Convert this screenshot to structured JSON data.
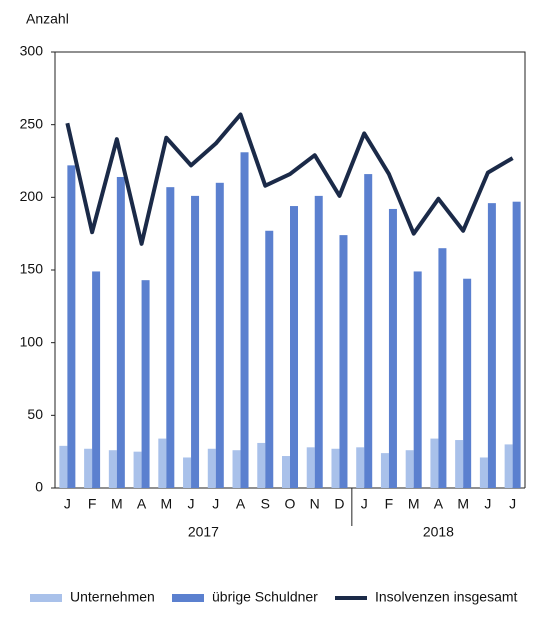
{
  "chart_data": {
    "type": "bar_line",
    "y_axis_label": "Anzahl",
    "category_groups": [
      {
        "name": "2017",
        "categories": [
          "J",
          "F",
          "M",
          "A",
          "M",
          "J",
          "J",
          "A",
          "S",
          "O",
          "N",
          "D"
        ]
      },
      {
        "name": "2018",
        "categories": [
          "J",
          "F",
          "M",
          "A",
          "M",
          "J",
          "J"
        ]
      }
    ],
    "series": [
      {
        "name": "Unternehmen",
        "type": "bar",
        "color": "#a9c1ea",
        "values": [
          29,
          27,
          26,
          25,
          34,
          21,
          27,
          26,
          31,
          22,
          28,
          27,
          28,
          24,
          26,
          34,
          33,
          21,
          30
        ]
      },
      {
        "name": "übrige Schuldner",
        "type": "bar",
        "color": "#5b80cf",
        "values": [
          222,
          149,
          214,
          143,
          207,
          201,
          210,
          231,
          177,
          194,
          201,
          174,
          216,
          192,
          149,
          165,
          144,
          196,
          197
        ]
      },
      {
        "name": "Insolvenzen insgesamt",
        "type": "line",
        "color": "#1b2a48",
        "values": [
          251,
          176,
          240,
          168,
          241,
          222,
          237,
          257,
          208,
          216,
          229,
          201,
          244,
          216,
          175,
          199,
          177,
          217,
          227
        ]
      }
    ],
    "ylim": [
      0,
      300
    ],
    "yticks": [
      0,
      50,
      100,
      150,
      200,
      250,
      300
    ]
  }
}
